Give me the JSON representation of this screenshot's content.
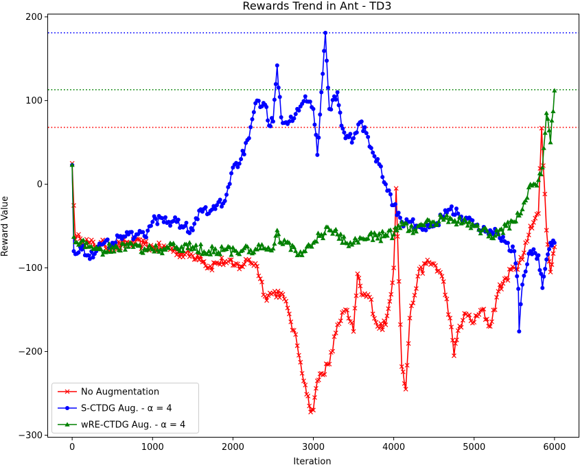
{
  "chart_data": {
    "type": "line",
    "title": "Rewards Trend in Ant - TD3",
    "xlabel": "Iteration",
    "ylabel": "Reward Value",
    "xlim": [
      -300,
      6300
    ],
    "ylim": [
      -302,
      203
    ],
    "xticks": [
      0,
      1000,
      2000,
      3000,
      4000,
      5000,
      6000
    ],
    "xtick_labels": [
      "0",
      "1000",
      "2000",
      "3000",
      "4000",
      "5000",
      "6000"
    ],
    "yticks": [
      -300,
      -200,
      -100,
      0,
      100,
      200
    ],
    "ytick_labels": [
      "−300",
      "−200",
      "−100",
      "0",
      "100",
      "200"
    ],
    "grid": false,
    "legend_position": "lower-left",
    "reference_lines": [
      {
        "y": 181,
        "color": "#0000ff",
        "style": "dotted"
      },
      {
        "y": 113,
        "color": "#008000",
        "style": "dotted"
      },
      {
        "y": 68,
        "color": "#ff0000",
        "style": "dotted"
      }
    ],
    "series": [
      {
        "name": "No Augmentation",
        "color": "#ff0000",
        "marker": "x",
        "anchors": [
          [
            0,
            25
          ],
          [
            40,
            -66
          ],
          [
            100,
            -65
          ],
          [
            200,
            -70
          ],
          [
            300,
            -74
          ],
          [
            400,
            -72
          ],
          [
            500,
            -76
          ],
          [
            700,
            -70
          ],
          [
            900,
            -72
          ],
          [
            1000,
            -76
          ],
          [
            1200,
            -76
          ],
          [
            1400,
            -84
          ],
          [
            1600,
            -86
          ],
          [
            1700,
            -100
          ],
          [
            1800,
            -94
          ],
          [
            1900,
            -92
          ],
          [
            2000,
            -97
          ],
          [
            2100,
            -98
          ],
          [
            2200,
            -90
          ],
          [
            2300,
            -98
          ],
          [
            2400,
            -134
          ],
          [
            2500,
            -130
          ],
          [
            2600,
            -130
          ],
          [
            2700,
            -155
          ],
          [
            2800,
            -193
          ],
          [
            2900,
            -240
          ],
          [
            2950,
            -265
          ],
          [
            3000,
            -270
          ],
          [
            3050,
            -235
          ],
          [
            3100,
            -226
          ],
          [
            3200,
            -215
          ],
          [
            3300,
            -168
          ],
          [
            3400,
            -150
          ],
          [
            3500,
            -176
          ],
          [
            3550,
            -107
          ],
          [
            3600,
            -132
          ],
          [
            3700,
            -135
          ],
          [
            3800,
            -170
          ],
          [
            3900,
            -168
          ],
          [
            3950,
            -140
          ],
          [
            4000,
            -100
          ],
          [
            4030,
            -5
          ],
          [
            4100,
            -218
          ],
          [
            4150,
            -245
          ],
          [
            4200,
            -160
          ],
          [
            4300,
            -110
          ],
          [
            4400,
            -95
          ],
          [
            4500,
            -95
          ],
          [
            4600,
            -110
          ],
          [
            4700,
            -160
          ],
          [
            4750,
            -205
          ],
          [
            4800,
            -175
          ],
          [
            4900,
            -155
          ],
          [
            5000,
            -165
          ],
          [
            5100,
            -150
          ],
          [
            5200,
            -170
          ],
          [
            5300,
            -128
          ],
          [
            5400,
            -112
          ],
          [
            5500,
            -100
          ],
          [
            5600,
            -90
          ],
          [
            5700,
            -50
          ],
          [
            5800,
            -35
          ],
          [
            5840,
            67
          ],
          [
            5900,
            -55
          ],
          [
            5950,
            -105
          ],
          [
            6000,
            -75
          ]
        ]
      },
      {
        "name": "S-CTDG Aug. - α = 4",
        "color": "#0000ff",
        "marker": "o",
        "anchors": [
          [
            0,
            23
          ],
          [
            20,
            -80
          ],
          [
            100,
            -75
          ],
          [
            200,
            -85
          ],
          [
            300,
            -80
          ],
          [
            400,
            -70
          ],
          [
            500,
            -70
          ],
          [
            600,
            -62
          ],
          [
            700,
            -60
          ],
          [
            800,
            -60
          ],
          [
            900,
            -62
          ],
          [
            1000,
            -45
          ],
          [
            1100,
            -40
          ],
          [
            1200,
            -45
          ],
          [
            1300,
            -45
          ],
          [
            1400,
            -50
          ],
          [
            1500,
            -55
          ],
          [
            1600,
            -30
          ],
          [
            1700,
            -35
          ],
          [
            1800,
            -25
          ],
          [
            1900,
            -20
          ],
          [
            2000,
            20
          ],
          [
            2100,
            30
          ],
          [
            2200,
            55
          ],
          [
            2300,
            100
          ],
          [
            2400,
            95
          ],
          [
            2450,
            70
          ],
          [
            2500,
            75
          ],
          [
            2550,
            142
          ],
          [
            2600,
            80
          ],
          [
            2700,
            75
          ],
          [
            2800,
            90
          ],
          [
            2900,
            105
          ],
          [
            3000,
            90
          ],
          [
            3050,
            35
          ],
          [
            3100,
            110
          ],
          [
            3150,
            181
          ],
          [
            3200,
            90
          ],
          [
            3300,
            110
          ],
          [
            3350,
            70
          ],
          [
            3400,
            55
          ],
          [
            3500,
            55
          ],
          [
            3600,
            75
          ],
          [
            3700,
            45
          ],
          [
            3800,
            30
          ],
          [
            3900,
            0
          ],
          [
            4000,
            -25
          ],
          [
            4100,
            -45
          ],
          [
            4200,
            -45
          ],
          [
            4300,
            -50
          ],
          [
            4400,
            -55
          ],
          [
            4500,
            -50
          ],
          [
            4600,
            -40
          ],
          [
            4700,
            -30
          ],
          [
            4800,
            -35
          ],
          [
            4900,
            -40
          ],
          [
            5000,
            -50
          ],
          [
            5100,
            -55
          ],
          [
            5200,
            -55
          ],
          [
            5300,
            -60
          ],
          [
            5400,
            -70
          ],
          [
            5500,
            -80
          ],
          [
            5550,
            -125
          ],
          [
            5560,
            -176
          ],
          [
            5600,
            -120
          ],
          [
            5700,
            -80
          ],
          [
            5800,
            -85
          ],
          [
            5850,
            -124
          ],
          [
            5900,
            -90
          ],
          [
            5950,
            -70
          ],
          [
            6000,
            -70
          ]
        ]
      },
      {
        "name": "wRE-CTDG Aug. - α = 4",
        "color": "#008000",
        "marker": "^",
        "anchors": [
          [
            0,
            23
          ],
          [
            20,
            -63
          ],
          [
            100,
            -70
          ],
          [
            200,
            -75
          ],
          [
            300,
            -75
          ],
          [
            400,
            -80
          ],
          [
            500,
            -75
          ],
          [
            700,
            -75
          ],
          [
            900,
            -77
          ],
          [
            1100,
            -78
          ],
          [
            1300,
            -75
          ],
          [
            1500,
            -75
          ],
          [
            1700,
            -80
          ],
          [
            1900,
            -78
          ],
          [
            2100,
            -80
          ],
          [
            2300,
            -78
          ],
          [
            2500,
            -77
          ],
          [
            2550,
            -55
          ],
          [
            2600,
            -70
          ],
          [
            2700,
            -70
          ],
          [
            2800,
            -85
          ],
          [
            2900,
            -80
          ],
          [
            3000,
            -70
          ],
          [
            3100,
            -60
          ],
          [
            3200,
            -55
          ],
          [
            3300,
            -60
          ],
          [
            3400,
            -70
          ],
          [
            3500,
            -70
          ],
          [
            3600,
            -65
          ],
          [
            3700,
            -60
          ],
          [
            3800,
            -65
          ],
          [
            3900,
            -60
          ],
          [
            4000,
            -60
          ],
          [
            4100,
            -45
          ],
          [
            4200,
            -55
          ],
          [
            4300,
            -50
          ],
          [
            4400,
            -45
          ],
          [
            4500,
            -45
          ],
          [
            4600,
            -40
          ],
          [
            4700,
            -40
          ],
          [
            4800,
            -45
          ],
          [
            4900,
            -45
          ],
          [
            5000,
            -50
          ],
          [
            5100,
            -55
          ],
          [
            5200,
            -60
          ],
          [
            5300,
            -60
          ],
          [
            5400,
            -50
          ],
          [
            5500,
            -45
          ],
          [
            5600,
            -30
          ],
          [
            5700,
            0
          ],
          [
            5800,
            5
          ],
          [
            5850,
            20
          ],
          [
            5900,
            85
          ],
          [
            5950,
            50
          ],
          [
            6000,
            112
          ]
        ]
      }
    ]
  }
}
